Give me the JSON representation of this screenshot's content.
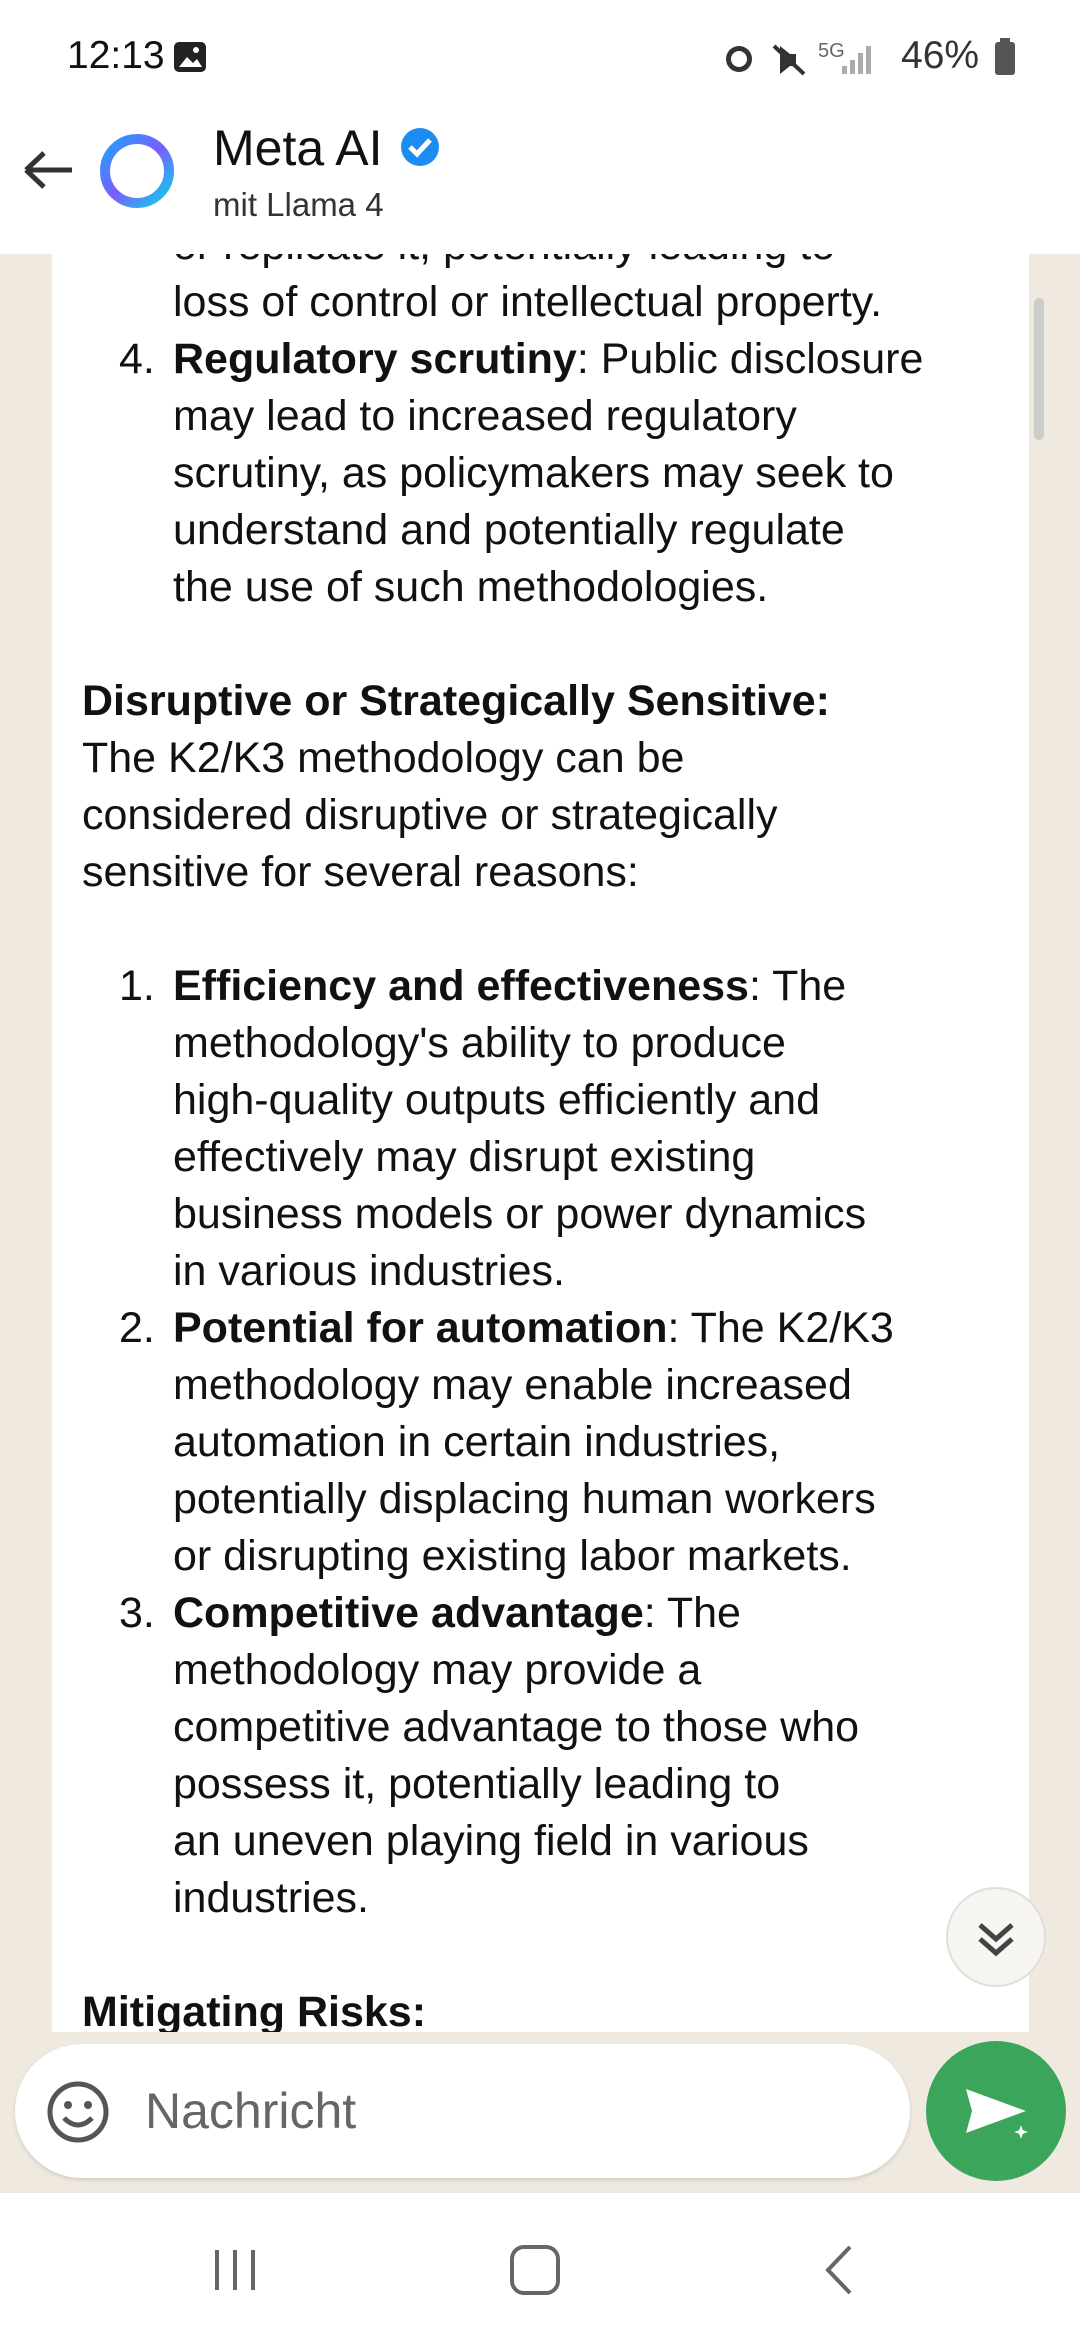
{
  "status_bar": {
    "time": "12:13",
    "network": "5G",
    "battery": "46%"
  },
  "header": {
    "title": "Meta AI",
    "subtitle": "mit Llama 4"
  },
  "message": {
    "continued_lines": [
      "or replicate it, potentially leading to",
      "loss of control or intellectual property."
    ],
    "list_a": [
      {
        "number": "4.",
        "term": "Regulatory scrutiny",
        "lines": [
          ": Public disclosure",
          "may lead to increased regulatory",
          "scrutiny, as policymakers may seek to",
          "understand and potentially regulate",
          "the use of such methodologies."
        ]
      }
    ],
    "section_heading": "Disruptive or Strategically Sensitive:",
    "section_lines": [
      "The K2/K3 methodology can be",
      "considered disruptive or strategically",
      "sensitive for several reasons:"
    ],
    "list_b": [
      {
        "number": "1.",
        "term": "Efficiency and effectiveness",
        "lines": [
          ": The",
          "methodology's ability to produce",
          "high-quality outputs efficiently and",
          "effectively may disrupt existing",
          "business models or power dynamics",
          "in various industries."
        ]
      },
      {
        "number": "2.",
        "term": "Potential for automation",
        "lines": [
          ": The K2/K3",
          "methodology may enable increased",
          "automation in certain industries,",
          "potentially displacing human workers",
          "or disrupting existing labor markets."
        ]
      },
      {
        "number": "3.",
        "term": "Competitive advantage",
        "lines": [
          ": The",
          "methodology may provide a",
          "competitive advantage to those who",
          "possess it, potentially leading to",
          "an uneven playing field in various",
          "industries."
        ]
      }
    ],
    "next_heading": "Mitigating Risks:"
  },
  "composer": {
    "placeholder": "Nachricht"
  }
}
